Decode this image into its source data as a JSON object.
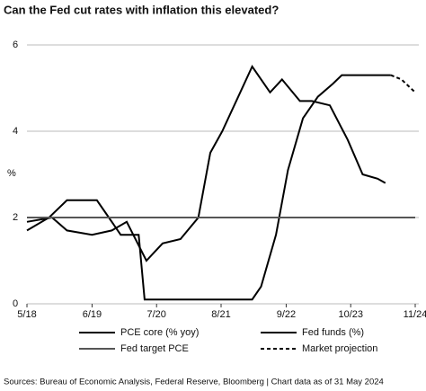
{
  "chart_data": {
    "type": "line",
    "title": "Can the Fed cut rates with inflation this elevated?",
    "y_label": "%",
    "source": "Sources: Bureau of Economic Analysis, Federal Reserve, Bloomberg  |  Chart data as of 31 May 2024",
    "xlim": [
      2018.33,
      2024.83
    ],
    "xticks": [
      {
        "value": 2018.33,
        "label": "5/18"
      },
      {
        "value": 2019.42,
        "label": "6/19"
      },
      {
        "value": 2020.5,
        "label": "7/20"
      },
      {
        "value": 2021.58,
        "label": "8/21"
      },
      {
        "value": 2022.67,
        "label": "9/22"
      },
      {
        "value": 2023.75,
        "label": "10/23"
      },
      {
        "value": 2024.83,
        "label": "11/24"
      }
    ],
    "ylim": [
      0,
      6
    ],
    "yticks": [
      0,
      2,
      4,
      6
    ],
    "grid": true,
    "series": [
      {
        "name": "PCE core (% yoy)",
        "color": "#000000",
        "x": [
          2018.33,
          2018.75,
          2019.0,
          2019.42,
          2019.75,
          2020.0,
          2020.33,
          2020.6,
          2020.9,
          2021.2,
          2021.4,
          2021.6,
          2021.9,
          2022.1,
          2022.4,
          2022.6,
          2022.9,
          2023.1,
          2023.4,
          2023.7,
          2023.95,
          2024.2,
          2024.33
        ],
        "values": [
          1.9,
          2.0,
          1.7,
          1.6,
          1.7,
          1.9,
          1.0,
          1.4,
          1.5,
          2.0,
          3.5,
          4.0,
          4.9,
          5.5,
          4.9,
          5.2,
          4.7,
          4.7,
          4.6,
          3.8,
          3.0,
          2.9,
          2.8
        ]
      },
      {
        "name": "Fed funds (%)",
        "color": "#000000",
        "x": [
          2018.33,
          2018.7,
          2019.0,
          2019.5,
          2019.7,
          2019.9,
          2020.2,
          2020.3,
          2022.1,
          2022.25,
          2022.5,
          2022.7,
          2022.95,
          2023.2,
          2023.45,
          2023.6,
          2024.42
        ],
        "values": [
          1.7,
          2.0,
          2.4,
          2.4,
          2.0,
          1.6,
          1.6,
          0.1,
          0.1,
          0.4,
          1.6,
          3.1,
          4.3,
          4.8,
          5.1,
          5.3,
          5.3
        ]
      },
      {
        "name": "Fed target PCE",
        "color": "#555555",
        "x": [
          2018.33,
          2024.83
        ],
        "values": [
          2,
          2
        ]
      },
      {
        "name": "Market projection",
        "color": "#000000",
        "x": [
          2024.42,
          2024.6,
          2024.83
        ],
        "values": [
          5.3,
          5.2,
          4.9
        ]
      }
    ]
  }
}
